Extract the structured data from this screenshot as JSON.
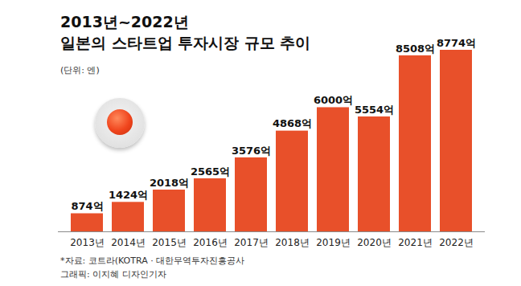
{
  "chart_data": {
    "type": "bar",
    "title": [
      "2013년~2022년",
      "일본의 스타트업 투자시장 규모 추이"
    ],
    "subtitle": "(단위: 엔)",
    "categories": [
      "2013년",
      "2014년",
      "2015년",
      "2016년",
      "2017년",
      "2018년",
      "2019년",
      "2020년",
      "2021년",
      "2022년"
    ],
    "values": [
      874,
      1424,
      2018,
      2565,
      3576,
      4868,
      6000,
      5554,
      8508,
      8774
    ],
    "value_labels": [
      "874억",
      "1424억",
      "2018억",
      "2565억",
      "3576억",
      "4868억",
      "6000억",
      "5554억",
      "8508억",
      "8774억"
    ],
    "color": "#e8502a",
    "ylim": [
      0,
      8774
    ],
    "data_labels": true,
    "tick_labels": "x",
    "grid": false,
    "source": [
      "*자료: 코트라(KOTRA · 대한무역투자진흥공사",
      "그래픽: 이지혜 디자인기자"
    ]
  }
}
